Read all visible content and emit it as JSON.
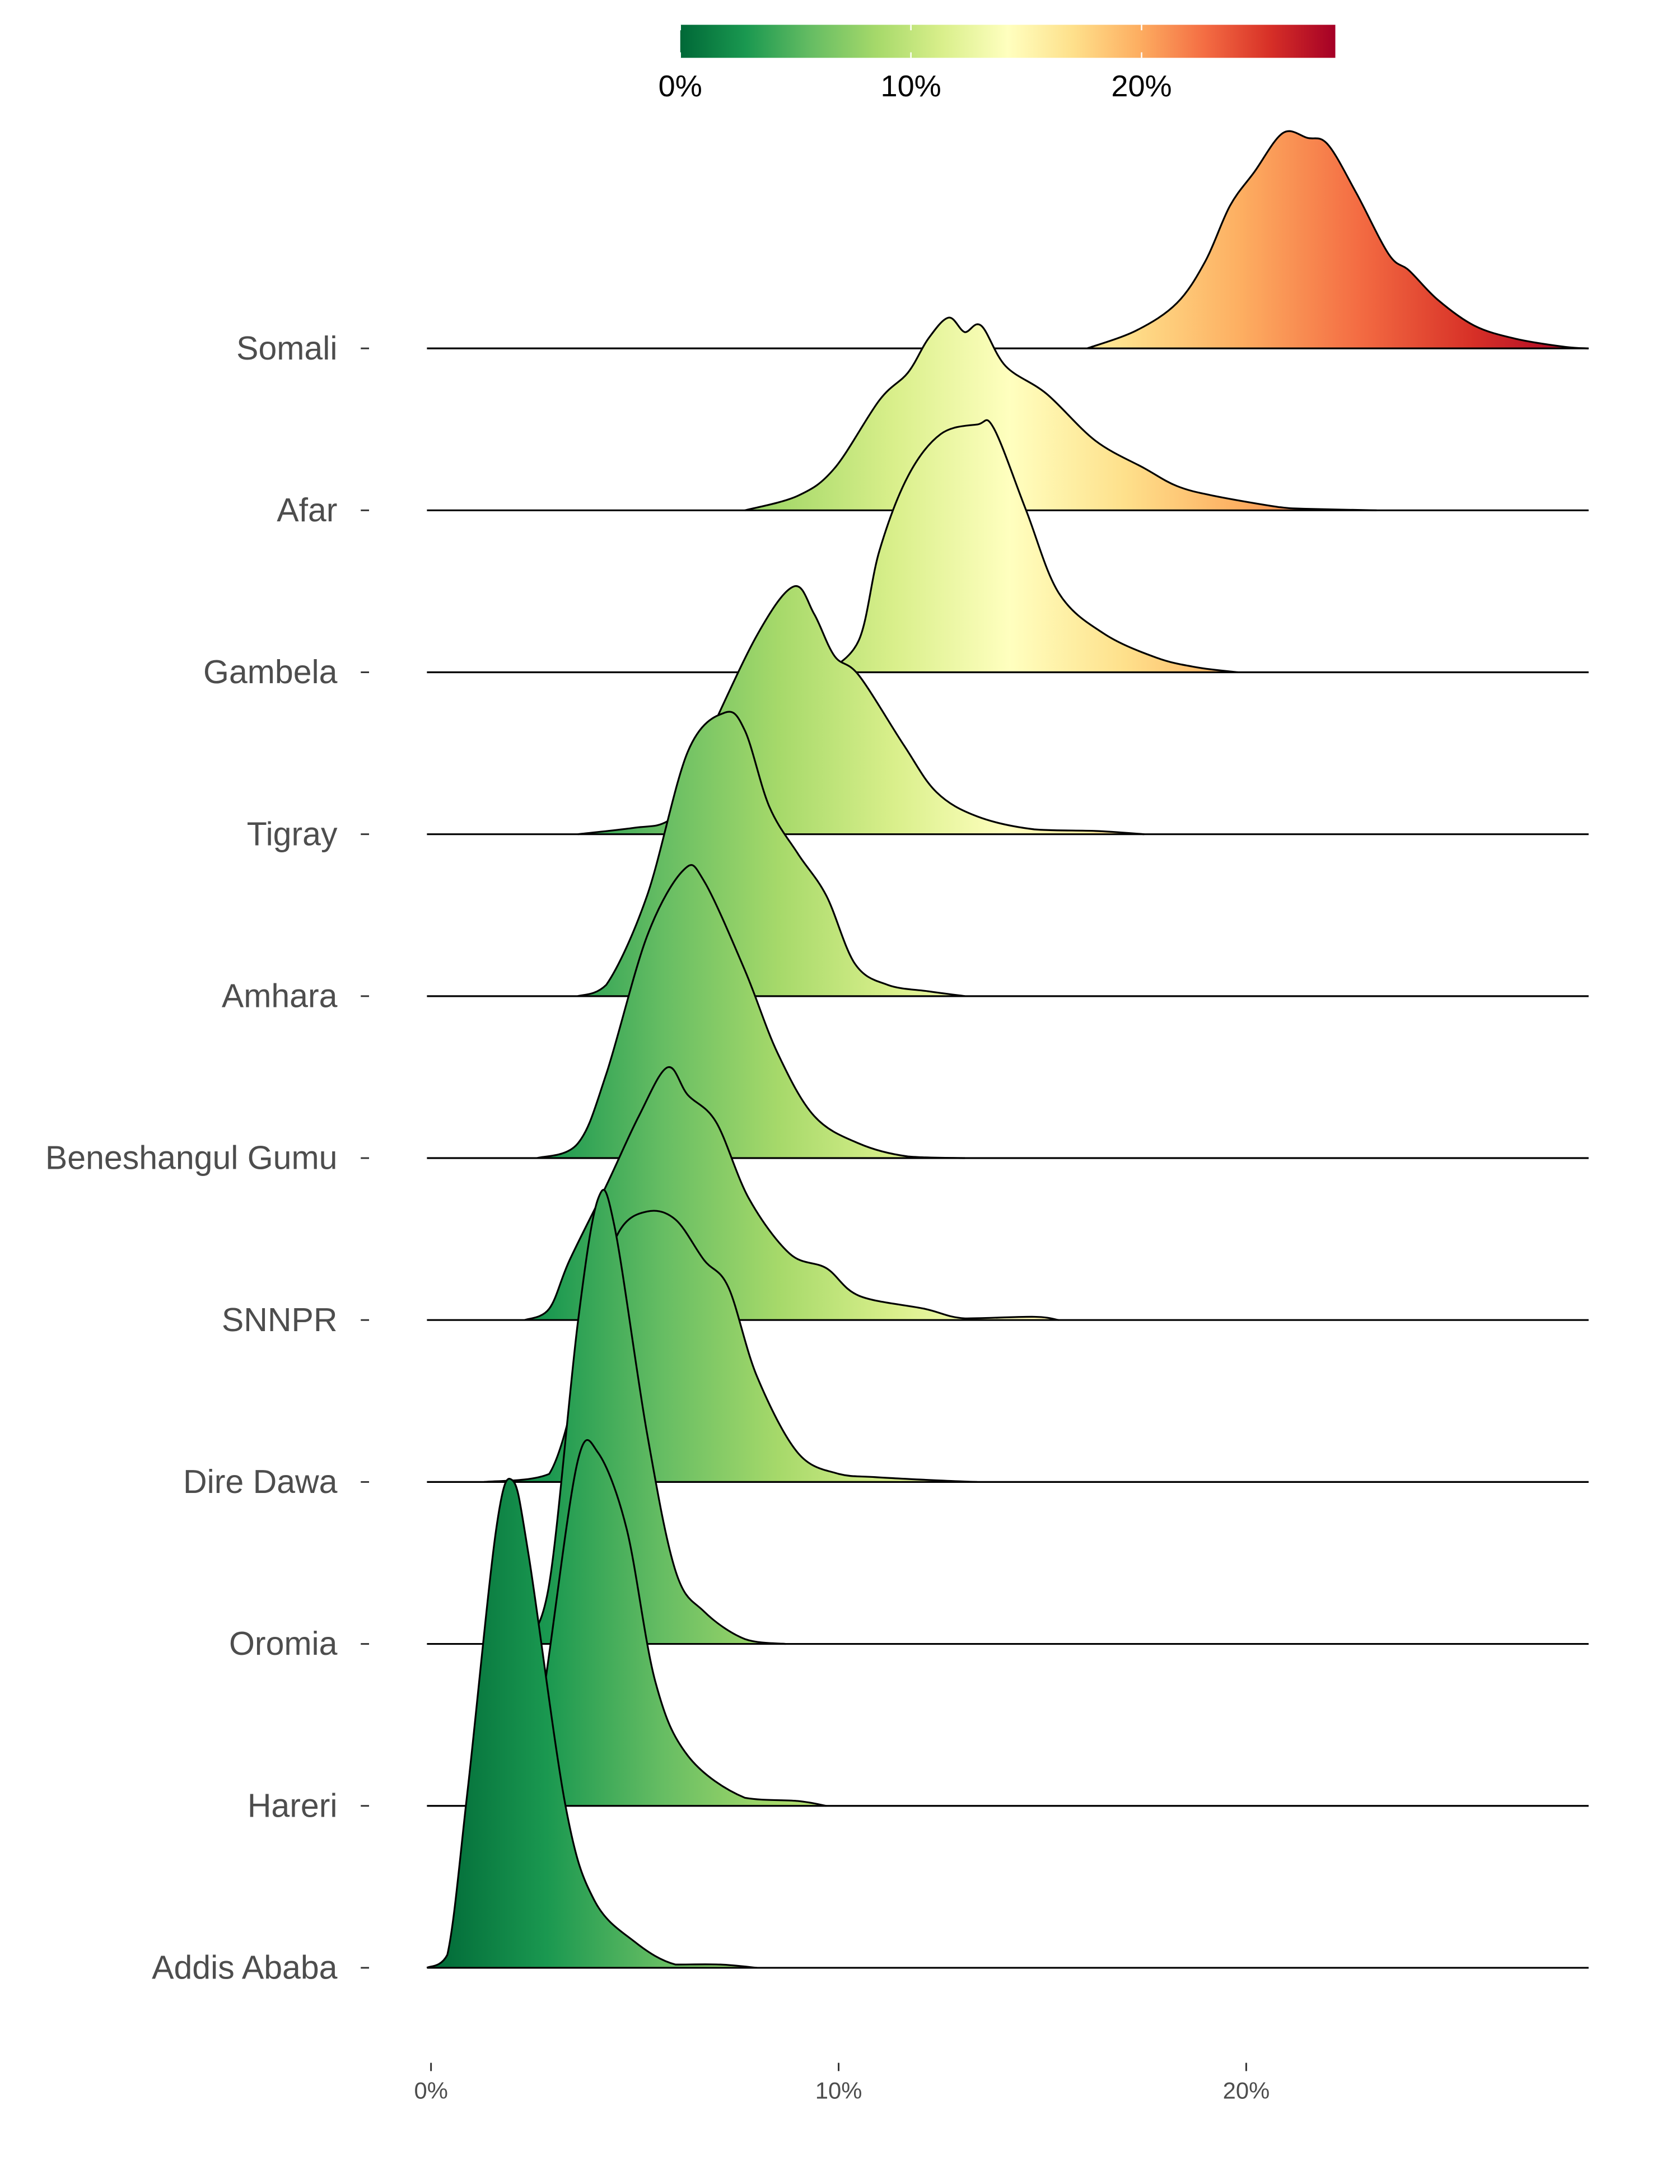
{
  "chart_data": {
    "type": "ridgeline",
    "title": "",
    "xlabel": "",
    "ylabel": "",
    "xlim": [
      -0.1,
      28.4
    ],
    "x_ticks": [
      "0%",
      "10%",
      "20%"
    ],
    "x_tick_values": [
      0,
      10,
      20
    ],
    "colorbar": {
      "position": "top",
      "range": [
        0,
        28.4
      ],
      "tick_labels": [
        "0%",
        "10%",
        "20%"
      ],
      "tick_values": [
        0,
        10,
        20
      ],
      "colors": [
        "#006837",
        "#1a9850",
        "#66bd63",
        "#a6d96a",
        "#d9ef8b",
        "#ffffbf",
        "#fee08b",
        "#fdae61",
        "#f46d43",
        "#d73027",
        "#a50026"
      ]
    },
    "series": [
      {
        "name": "Somali",
        "density": [
          [
            16.1,
            0
          ],
          [
            17.3,
            0.11
          ],
          [
            18.3,
            0.28
          ],
          [
            19.0,
            0.54
          ],
          [
            19.6,
            0.88
          ],
          [
            20.2,
            1.09
          ],
          [
            20.9,
            1.33
          ],
          [
            21.5,
            1.3
          ],
          [
            22.0,
            1.26
          ],
          [
            22.7,
            0.96
          ],
          [
            23.5,
            0.58
          ],
          [
            24.0,
            0.48
          ],
          [
            24.7,
            0.3
          ],
          [
            25.6,
            0.14
          ],
          [
            26.6,
            0.06
          ],
          [
            27.8,
            0.01
          ],
          [
            28.4,
            0
          ]
        ]
      },
      {
        "name": "Afar",
        "density": [
          [
            7.7,
            0
          ],
          [
            9.0,
            0.09
          ],
          [
            9.9,
            0.26
          ],
          [
            11.0,
            0.68
          ],
          [
            11.7,
            0.85
          ],
          [
            12.2,
            1.06
          ],
          [
            12.7,
            1.19
          ],
          [
            13.1,
            1.1
          ],
          [
            13.5,
            1.14
          ],
          [
            14.1,
            0.89
          ],
          [
            15.1,
            0.72
          ],
          [
            16.3,
            0.43
          ],
          [
            17.5,
            0.26
          ],
          [
            18.3,
            0.15
          ],
          [
            19.2,
            0.09
          ],
          [
            20.8,
            0.02
          ],
          [
            21.4,
            0.01
          ],
          [
            23.2,
            0
          ]
        ]
      },
      {
        "name": "Gambela",
        "density": [
          [
            9.7,
            0
          ],
          [
            10.5,
            0.2
          ],
          [
            11.0,
            0.75
          ],
          [
            11.7,
            1.21
          ],
          [
            12.5,
            1.47
          ],
          [
            13.4,
            1.53
          ],
          [
            13.8,
            1.51
          ],
          [
            14.6,
            1.0
          ],
          [
            15.4,
            0.49
          ],
          [
            16.5,
            0.24
          ],
          [
            17.8,
            0.09
          ],
          [
            18.8,
            0.03
          ],
          [
            19.8,
            0
          ]
        ]
      },
      {
        "name": "Tigray",
        "density": [
          [
            3.6,
            0
          ],
          [
            5.0,
            0.04
          ],
          [
            5.8,
            0.08
          ],
          [
            6.7,
            0.55
          ],
          [
            8.0,
            1.23
          ],
          [
            8.9,
            1.53
          ],
          [
            9.4,
            1.36
          ],
          [
            9.9,
            1.1
          ],
          [
            10.5,
            0.98
          ],
          [
            11.6,
            0.55
          ],
          [
            12.4,
            0.26
          ],
          [
            13.4,
            0.11
          ],
          [
            14.8,
            0.03
          ],
          [
            16.3,
            0.02
          ],
          [
            17.5,
            0
          ]
        ]
      },
      {
        "name": "Amhara",
        "density": [
          [
            3.6,
            0
          ],
          [
            4.3,
            0.07
          ],
          [
            5.3,
            0.62
          ],
          [
            6.3,
            1.51
          ],
          [
            7.2,
            1.75
          ],
          [
            7.7,
            1.64
          ],
          [
            8.3,
            1.17
          ],
          [
            9.0,
            0.88
          ],
          [
            9.7,
            0.62
          ],
          [
            10.4,
            0.2
          ],
          [
            11.2,
            0.07
          ],
          [
            12.2,
            0.03
          ],
          [
            13.1,
            0
          ]
        ]
      },
      {
        "name": "Beneshangul Gumu",
        "density": [
          [
            2.6,
            0
          ],
          [
            3.6,
            0.09
          ],
          [
            4.3,
            0.52
          ],
          [
            5.3,
            1.37
          ],
          [
            6.2,
            1.78
          ],
          [
            6.7,
            1.71
          ],
          [
            7.7,
            1.16
          ],
          [
            8.5,
            0.65
          ],
          [
            9.4,
            0.26
          ],
          [
            10.5,
            0.09
          ],
          [
            11.7,
            0.01
          ],
          [
            13.1,
            0
          ]
        ]
      },
      {
        "name": "SNNPR",
        "density": [
          [
            2.3,
            0
          ],
          [
            2.9,
            0.07
          ],
          [
            3.4,
            0.37
          ],
          [
            4.3,
            0.83
          ],
          [
            5.1,
            1.26
          ],
          [
            5.8,
            1.56
          ],
          [
            6.3,
            1.39
          ],
          [
            7.0,
            1.22
          ],
          [
            7.8,
            0.75
          ],
          [
            8.8,
            0.41
          ],
          [
            9.7,
            0.32
          ],
          [
            10.5,
            0.15
          ],
          [
            12.1,
            0.07
          ],
          [
            13.1,
            0.01
          ],
          [
            14.8,
            0.02
          ],
          [
            15.4,
            0
          ]
        ]
      },
      {
        "name": "Dire Dawa",
        "density": [
          [
            1.3,
            0
          ],
          [
            2.9,
            0.05
          ],
          [
            4.0,
            1.07
          ],
          [
            4.6,
            1.54
          ],
          [
            5.3,
            1.67
          ],
          [
            6.0,
            1.62
          ],
          [
            6.7,
            1.37
          ],
          [
            7.3,
            1.2
          ],
          [
            8.0,
            0.65
          ],
          [
            9.0,
            0.18
          ],
          [
            10.0,
            0.05
          ],
          [
            10.9,
            0.03
          ],
          [
            12.4,
            0.01
          ],
          [
            13.4,
            0
          ]
        ]
      },
      {
        "name": "Oromia",
        "density": [
          [
            2.3,
            0
          ],
          [
            2.9,
            0.37
          ],
          [
            3.6,
            1.98
          ],
          [
            4.1,
            2.75
          ],
          [
            4.5,
            2.58
          ],
          [
            5.3,
            1.3
          ],
          [
            6.0,
            0.45
          ],
          [
            6.7,
            0.2
          ],
          [
            7.7,
            0.03
          ],
          [
            8.7,
            0
          ]
        ]
      },
      {
        "name": "Hareri",
        "density": [
          [
            2.4,
            0
          ],
          [
            2.9,
            0.94
          ],
          [
            3.6,
            2.13
          ],
          [
            4.1,
            2.18
          ],
          [
            4.8,
            1.71
          ],
          [
            5.5,
            0.77
          ],
          [
            6.3,
            0.31
          ],
          [
            7.7,
            0.05
          ],
          [
            9.0,
            0.03
          ],
          [
            9.7,
            0
          ]
        ]
      },
      {
        "name": "Addis Ababa",
        "density": [
          [
            -0.1,
            0
          ],
          [
            0.4,
            0.08
          ],
          [
            0.9,
            1.1
          ],
          [
            1.6,
            2.71
          ],
          [
            2.0,
            3.01
          ],
          [
            2.4,
            2.54
          ],
          [
            3.3,
            1.0
          ],
          [
            4.0,
            0.42
          ],
          [
            5.0,
            0.16
          ],
          [
            6.0,
            0.02
          ],
          [
            7.1,
            0.02
          ],
          [
            8.0,
            0
          ]
        ]
      }
    ]
  }
}
